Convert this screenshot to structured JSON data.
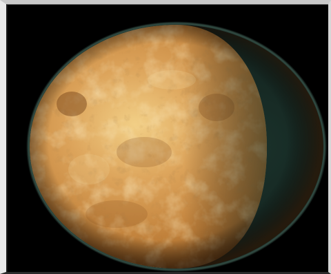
{
  "image": {
    "subject_icon": "planet-icon",
    "colors": {
      "background": "#000000",
      "frame_light": "#e9e9e9",
      "frame_mid": "#c9c9c9",
      "planet_base": "#c8893a",
      "planet_highlight": "#f0d48a",
      "planet_shadow": "#7a4a1c",
      "night_side": "#1f3a33",
      "limb_glow": "#5a8a7a"
    }
  }
}
